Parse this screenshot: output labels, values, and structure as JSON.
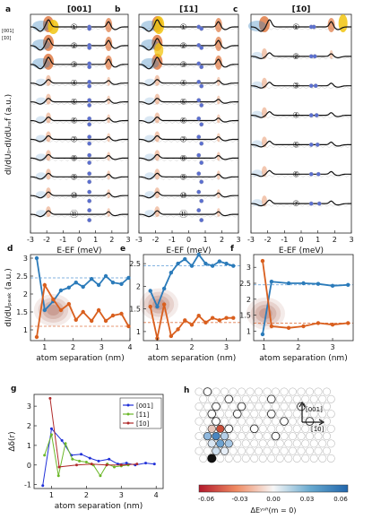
{
  "top_panels": [
    {
      "letter": "a",
      "title": "[001]",
      "rows": 11,
      "blob_rows": 3
    },
    {
      "letter": "b",
      "title": "[1̄1]",
      "rows": 11,
      "blob_rows": 3
    },
    {
      "letter": "c",
      "title": "[1̄0]",
      "rows": 7,
      "blob_rows": 1
    }
  ],
  "top_axes": {
    "ylabel": "dI/dU₀-dI/dUᵣₑf (a.u.)",
    "xlabel": "E-EF (meV)",
    "xticks": [
      "-3",
      "-2",
      "-1",
      "0",
      "1",
      "2",
      "3"
    ],
    "dir_top": "[001]",
    "dir_bottom": "[1̄0]"
  },
  "row_labels": [
    "①",
    "②",
    "③",
    "④",
    "⑤",
    "⑥",
    "⑦",
    "⑧",
    "⑨",
    "⑩",
    "⑪"
  ],
  "colors": {
    "blue": "#2b7bba",
    "orange": "#d95f1e",
    "dashed_blue": "#5b9bd5",
    "dashed_orange": "#e07a4a"
  },
  "chart_data": [
    {
      "letter": "d",
      "type": "line",
      "xlabel": "atom separation (nm)",
      "ylabel": "dI/dUₚₑₐₖ (a.u.)",
      "xlim": [
        0.5,
        4
      ],
      "ylim": [
        0.7,
        3.1
      ],
      "xticks": [
        "1",
        "2",
        "3",
        "4"
      ],
      "yticks": [
        "1",
        "1.5",
        "2",
        "2.5",
        "3"
      ],
      "series": [
        {
          "color": "blue",
          "x": [
            0.72,
            1.0,
            1.3,
            1.57,
            1.85,
            2.1,
            2.35,
            2.65,
            2.9,
            3.15,
            3.4,
            3.7,
            3.95
          ],
          "y": [
            3.0,
            1.55,
            1.8,
            2.1,
            2.18,
            2.32,
            2.2,
            2.42,
            2.25,
            2.5,
            2.32,
            2.28,
            2.45
          ]
        },
        {
          "color": "orange",
          "x": [
            0.72,
            1.0,
            1.3,
            1.57,
            1.85,
            2.1,
            2.35,
            2.65,
            2.9,
            3.15,
            3.4,
            3.7,
            3.95
          ],
          "y": [
            0.8,
            2.25,
            1.85,
            1.55,
            1.72,
            1.28,
            1.5,
            1.25,
            1.55,
            1.25,
            1.4,
            1.45,
            1.1
          ]
        }
      ],
      "dashed": [
        {
          "color": "blue",
          "y": 2.45
        },
        {
          "color": "orange",
          "y": 1.1
        }
      ]
    },
    {
      "letter": "e",
      "type": "line",
      "xlabel": "atom separation (nm)",
      "ylabel": "",
      "xlim": [
        0.6,
        3.4
      ],
      "ylim": [
        0.8,
        2.7
      ],
      "xticks": [
        "1",
        "2",
        "3"
      ],
      "yticks": [
        "1",
        "1.5",
        "2",
        "2.5"
      ],
      "series": [
        {
          "color": "blue",
          "x": [
            0.8,
            1.0,
            1.2,
            1.4,
            1.6,
            1.8,
            2.0,
            2.2,
            2.4,
            2.6,
            2.8,
            3.0,
            3.2
          ],
          "y": [
            1.9,
            1.55,
            1.95,
            2.3,
            2.5,
            2.6,
            2.45,
            2.7,
            2.5,
            2.45,
            2.55,
            2.5,
            2.45
          ]
        },
        {
          "color": "orange",
          "x": [
            0.8,
            1.0,
            1.2,
            1.4,
            1.6,
            1.8,
            2.0,
            2.2,
            2.4,
            2.6,
            2.8,
            3.0,
            3.2
          ],
          "y": [
            1.55,
            0.85,
            1.6,
            0.9,
            1.05,
            1.25,
            1.15,
            1.35,
            1.2,
            1.3,
            1.25,
            1.3,
            1.3
          ]
        }
      ],
      "dashed": [
        {
          "color": "blue",
          "y": 2.45
        },
        {
          "color": "orange",
          "y": 1.2
        }
      ]
    },
    {
      "letter": "f",
      "type": "line",
      "xlabel": "atom separation (nm)",
      "ylabel": "",
      "xlim": [
        0.7,
        3.6
      ],
      "ylim": [
        0.7,
        3.4
      ],
      "xticks": [
        "1",
        "2",
        "3"
      ],
      "yticks": [
        "1",
        "1.5",
        "2",
        "2.5",
        "3"
      ],
      "series": [
        {
          "color": "blue",
          "x": [
            0.96,
            1.22,
            1.72,
            2.15,
            2.58,
            3.0,
            3.45
          ],
          "y": [
            0.9,
            2.55,
            2.5,
            2.5,
            2.48,
            2.42,
            2.45
          ]
        },
        {
          "color": "orange",
          "x": [
            0.96,
            1.22,
            1.72,
            2.15,
            2.58,
            3.0,
            3.45
          ],
          "y": [
            3.2,
            1.15,
            1.1,
            1.15,
            1.25,
            1.2,
            1.25
          ]
        }
      ],
      "dashed": [
        {
          "color": "blue",
          "y": 2.45
        },
        {
          "color": "orange",
          "y": 1.25
        }
      ]
    },
    {
      "letter": "g",
      "type": "line",
      "xlabel": "atom separation (nm)",
      "ylabel": "Δδ(r)",
      "xlim": [
        0.5,
        4.2
      ],
      "ylim": [
        -1.2,
        3.6
      ],
      "xticks": [
        "1",
        "2",
        "3",
        "4"
      ],
      "yticks": [
        "-1",
        "0",
        "1",
        "2",
        "3"
      ],
      "legend": [
        "001",
        "1̄1",
        "1̄0"
      ],
      "series": [
        {
          "name": "001",
          "color": "#2030d8",
          "x": [
            0.75,
            1.0,
            1.3,
            1.57,
            1.85,
            2.1,
            2.35,
            2.65,
            2.9,
            3.15,
            3.4,
            3.7,
            3.95
          ],
          "y": [
            -1.05,
            1.85,
            1.25,
            0.5,
            0.55,
            0.35,
            0.2,
            0.3,
            0.05,
            0.1,
            0.0,
            0.1,
            0.05
          ]
        },
        {
          "name": "1̄1",
          "color": "#6cb82a",
          "x": [
            0.8,
            1.0,
            1.2,
            1.4,
            1.6,
            1.8,
            2.0,
            2.2,
            2.4,
            2.6,
            2.8,
            3.0,
            3.2
          ],
          "y": [
            0.5,
            1.55,
            -0.55,
            1.1,
            0.3,
            0.2,
            0.15,
            0.0,
            -0.55,
            0.05,
            -0.1,
            -0.05,
            0.0
          ]
        },
        {
          "name": "1̄0",
          "color": "#b02a2a",
          "x": [
            0.96,
            1.22,
            1.72,
            2.15,
            2.58,
            3.0,
            3.45
          ],
          "y": [
            3.4,
            -0.1,
            0.0,
            0.05,
            0.0,
            0.0,
            0.05
          ]
        }
      ]
    },
    {
      "letter": "h",
      "type": "heatmap",
      "colorbar_ticks": [
        "-0.06",
        "-0.03",
        "0.00",
        "0.03",
        "0.06"
      ],
      "colorbar_label": "ΔEʸˢᴿ(m = 0)",
      "arrow_up": "[001]",
      "arrow_right": "[1̄0]"
    }
  ]
}
